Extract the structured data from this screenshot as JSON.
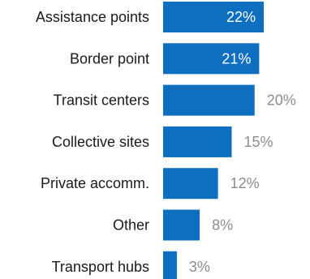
{
  "chart_data": {
    "type": "bar",
    "orientation": "horizontal",
    "categories": [
      "Assistance points",
      "Border point",
      "Transit centers",
      "Collective sites",
      "Private accomm.",
      "Other",
      "Transport hubs"
    ],
    "values": [
      22,
      21,
      20,
      15,
      12,
      8,
      3
    ],
    "value_labels": [
      "22%",
      "21%",
      "20%",
      "15%",
      "12%",
      "8%",
      "3%"
    ],
    "title": "",
    "xlabel": "",
    "ylabel": "",
    "xlim": [
      0,
      22
    ],
    "grid": false,
    "legend": "none",
    "colors": {
      "bar": "#0e6fc1",
      "label_inside": "#ffffff",
      "label_outside": "#8c8c8c",
      "category_text": "#1a1a1a"
    }
  }
}
